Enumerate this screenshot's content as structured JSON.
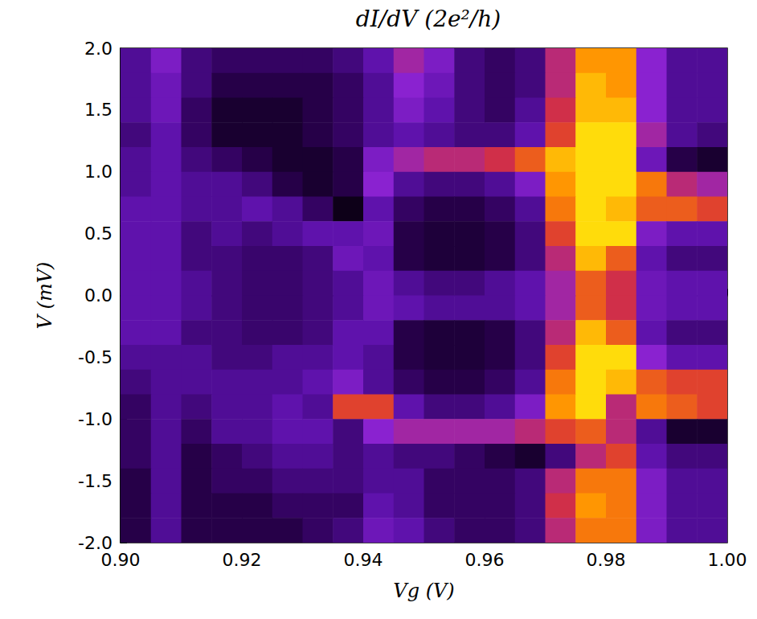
{
  "chart_data": {
    "type": "heatmap",
    "title": "dI/dV (2e²/h)",
    "x_label": "Vg (V)",
    "y_label": "V (mV)",
    "xlim": [
      0.9,
      1.0
    ],
    "ylim": [
      -2.0,
      2.0
    ],
    "xticks": [
      {
        "value": 0.9,
        "label": "0.90"
      },
      {
        "value": 0.92,
        "label": "0.92"
      },
      {
        "value": 0.94,
        "label": "0.94"
      },
      {
        "value": 0.96,
        "label": "0.96"
      },
      {
        "value": 0.98,
        "label": "0.98"
      },
      {
        "value": 1.0,
        "label": "1.00"
      }
    ],
    "yticks": [
      {
        "value": -2.0,
        "label": "-2.0"
      },
      {
        "value": -1.5,
        "label": "-1.5"
      },
      {
        "value": -1.0,
        "label": "-1.0"
      },
      0.5,
      {
        "value": -0.5,
        "label": "-0.5"
      },
      {
        "value": 0.0,
        "label": "0.0"
      },
      {
        "value": 1.0,
        "label": "1.0"
      },
      1.5,
      {
        "value": 2.0,
        "label": "2.0"
      }
    ],
    "grid": false,
    "zlim": [
      0,
      1
    ],
    "x": [
      0.9025,
      0.9075,
      0.9125,
      0.9175,
      0.9225,
      0.9275,
      0.9325,
      0.9375,
      0.9425,
      0.9475,
      0.9525,
      0.9575,
      0.9625,
      0.9675,
      0.9725,
      0.9775,
      0.9825,
      0.9875,
      0.9925,
      0.9975
    ],
    "y": [
      1.9,
      1.7,
      1.5,
      1.3,
      1.1,
      0.9,
      0.7,
      0.5,
      0.3,
      0.1,
      -0.1,
      -0.3,
      -0.5,
      -0.7,
      -0.9,
      -1.1,
      -1.3,
      -1.5,
      -1.7,
      -1.9
    ],
    "values": [
      [
        0.3,
        0.45,
        0.25,
        0.2,
        0.2,
        0.2,
        0.2,
        0.25,
        0.35,
        0.55,
        0.45,
        0.25,
        0.2,
        0.25,
        0.6,
        0.85,
        0.85,
        0.5,
        0.3,
        0.3
      ],
      [
        0.3,
        0.4,
        0.25,
        0.15,
        0.15,
        0.15,
        0.15,
        0.2,
        0.3,
        0.5,
        0.4,
        0.25,
        0.2,
        0.25,
        0.6,
        0.9,
        0.85,
        0.5,
        0.3,
        0.3
      ],
      [
        0.3,
        0.4,
        0.2,
        0.1,
        0.1,
        0.1,
        0.15,
        0.2,
        0.3,
        0.45,
        0.35,
        0.25,
        0.2,
        0.3,
        0.65,
        0.9,
        0.9,
        0.5,
        0.3,
        0.3
      ],
      [
        0.25,
        0.35,
        0.2,
        0.1,
        0.1,
        0.1,
        0.15,
        0.2,
        0.3,
        0.35,
        0.3,
        0.25,
        0.25,
        0.35,
        0.7,
        0.95,
        0.95,
        0.55,
        0.3,
        0.25
      ],
      [
        0.3,
        0.35,
        0.25,
        0.2,
        0.15,
        0.1,
        0.1,
        0.15,
        0.45,
        0.55,
        0.6,
        0.6,
        0.65,
        0.75,
        0.9,
        0.95,
        0.95,
        0.4,
        0.15,
        0.1
      ],
      [
        0.3,
        0.35,
        0.3,
        0.3,
        0.25,
        0.15,
        0.1,
        0.15,
        0.5,
        0.3,
        0.25,
        0.25,
        0.3,
        0.45,
        0.85,
        0.95,
        0.95,
        0.8,
        0.6,
        0.55
      ],
      [
        0.35,
        0.35,
        0.3,
        0.3,
        0.35,
        0.3,
        0.2,
        0.05,
        0.35,
        0.2,
        0.15,
        0.15,
        0.2,
        0.3,
        0.8,
        0.95,
        0.9,
        0.75,
        0.75,
        0.7
      ],
      [
        0.35,
        0.35,
        0.25,
        0.3,
        0.25,
        0.3,
        0.35,
        0.35,
        0.4,
        0.15,
        0.12,
        0.12,
        0.15,
        0.25,
        0.7,
        0.95,
        0.95,
        0.45,
        0.35,
        0.35
      ],
      [
        0.35,
        0.35,
        0.25,
        0.25,
        0.22,
        0.22,
        0.25,
        0.4,
        0.35,
        0.15,
        0.12,
        0.12,
        0.15,
        0.25,
        0.6,
        0.9,
        0.75,
        0.35,
        0.25,
        0.25
      ],
      [
        0.35,
        0.35,
        0.3,
        0.25,
        0.22,
        0.22,
        0.25,
        0.3,
        0.4,
        0.3,
        0.25,
        0.25,
        0.3,
        0.35,
        0.55,
        0.75,
        0.65,
        0.4,
        0.35,
        0.35
      ],
      [
        0.35,
        0.35,
        0.3,
        0.25,
        0.22,
        0.22,
        0.25,
        0.3,
        0.4,
        0.35,
        0.3,
        0.3,
        0.3,
        0.35,
        0.55,
        0.75,
        0.65,
        0.4,
        0.35,
        0.35
      ],
      [
        0.35,
        0.35,
        0.25,
        0.25,
        0.22,
        0.22,
        0.25,
        0.35,
        0.35,
        0.15,
        0.12,
        0.12,
        0.15,
        0.25,
        0.6,
        0.9,
        0.75,
        0.35,
        0.25,
        0.25
      ],
      [
        0.3,
        0.3,
        0.3,
        0.25,
        0.25,
        0.3,
        0.3,
        0.35,
        0.3,
        0.15,
        0.12,
        0.12,
        0.15,
        0.25,
        0.7,
        0.95,
        0.95,
        0.5,
        0.35,
        0.35
      ],
      [
        0.25,
        0.3,
        0.3,
        0.3,
        0.3,
        0.3,
        0.35,
        0.45,
        0.3,
        0.2,
        0.15,
        0.15,
        0.2,
        0.3,
        0.8,
        0.95,
        0.9,
        0.75,
        0.7,
        0.7
      ],
      [
        0.2,
        0.3,
        0.25,
        0.3,
        0.3,
        0.35,
        0.3,
        0.7,
        0.7,
        0.35,
        0.25,
        0.25,
        0.3,
        0.45,
        0.85,
        0.95,
        0.6,
        0.8,
        0.75,
        0.7
      ],
      [
        0.2,
        0.3,
        0.2,
        0.3,
        0.3,
        0.35,
        0.35,
        0.25,
        0.5,
        0.55,
        0.55,
        0.55,
        0.55,
        0.6,
        0.7,
        0.75,
        0.6,
        0.3,
        0.1,
        0.1
      ],
      [
        0.2,
        0.3,
        0.15,
        0.2,
        0.25,
        0.3,
        0.3,
        0.25,
        0.3,
        0.25,
        0.25,
        0.2,
        0.15,
        0.1,
        0.25,
        0.6,
        0.7,
        0.35,
        0.25,
        0.25
      ],
      [
        0.15,
        0.3,
        0.15,
        0.2,
        0.2,
        0.25,
        0.25,
        0.25,
        0.3,
        0.3,
        0.2,
        0.2,
        0.2,
        0.25,
        0.6,
        0.8,
        0.8,
        0.45,
        0.3,
        0.3
      ],
      [
        0.15,
        0.3,
        0.15,
        0.15,
        0.15,
        0.2,
        0.2,
        0.2,
        0.35,
        0.3,
        0.2,
        0.2,
        0.2,
        0.25,
        0.65,
        0.85,
        0.8,
        0.45,
        0.3,
        0.3
      ],
      [
        0.15,
        0.3,
        0.15,
        0.15,
        0.15,
        0.15,
        0.2,
        0.25,
        0.4,
        0.35,
        0.25,
        0.2,
        0.2,
        0.25,
        0.6,
        0.8,
        0.8,
        0.45,
        0.3,
        0.3
      ]
    ]
  }
}
